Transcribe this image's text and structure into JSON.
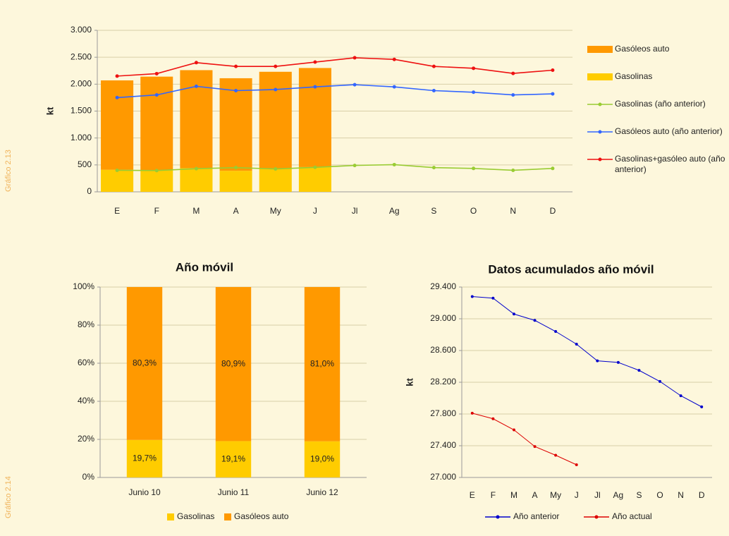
{
  "figure_labels": [
    "Gráfico 2.13",
    "Gráfico 2.14"
  ],
  "chart_data": [
    {
      "type": "bar",
      "ylabel": "kt",
      "legend": "right",
      "grid": true,
      "categories": [
        "E",
        "F",
        "M",
        "A",
        "My",
        "J",
        "Jl",
        "Ag",
        "S",
        "O",
        "N",
        "D"
      ],
      "ylim": [
        0,
        3000
      ],
      "yticks": [
        0,
        500,
        {
          "value": 1000,
          "label": "1.000"
        },
        {
          "value": 1500,
          "label": "1.500"
        },
        {
          "value": 2000,
          "label": "2.000"
        },
        {
          "value": 2500,
          "label": "2.500"
        },
        {
          "value": 3000,
          "label": "3.000"
        }
      ],
      "series": [
        {
          "name": "Gasolinas",
          "color": "#ffcc00",
          "values": [
            410,
            400,
            440,
            390,
            430,
            460,
            null,
            null,
            null,
            null,
            null,
            null
          ]
        },
        {
          "name": "Gasóleos auto",
          "color": "#ff9900",
          "values": [
            1660,
            1740,
            1820,
            1720,
            1800,
            1840,
            null,
            null,
            null,
            null,
            null,
            null
          ]
        },
        {
          "name": "Gasolinas (año anterior)",
          "type": "line",
          "color": "#99cc33",
          "values": [
            400,
            395,
            430,
            450,
            425,
            455,
            490,
            505,
            450,
            435,
            400,
            435
          ]
        },
        {
          "name": "Gasóleos auto (año anterior)",
          "type": "line",
          "color": "#3366ff",
          "values": [
            1750,
            1800,
            1960,
            1880,
            1900,
            1950,
            1990,
            1950,
            1880,
            1850,
            1800,
            1820
          ]
        },
        {
          "name": "Gasolinas+gasóleo auto (año anterior)",
          "type": "line",
          "color": "#ee1111",
          "values": [
            2150,
            2195,
            2400,
            2330,
            2330,
            2410,
            2490,
            2460,
            2330,
            2295,
            2200,
            2260
          ]
        }
      ]
    },
    {
      "type": "bar",
      "title": "Año móvil",
      "legend": "bottom",
      "grid": true,
      "categories": [
        "Junio 10",
        "Junio 11",
        "Junio 12"
      ],
      "ylim": [
        0,
        100
      ],
      "yticks": [
        {
          "value": 0,
          "label": "0%"
        },
        {
          "value": 20,
          "label": "20%"
        },
        {
          "value": 40,
          "label": "40%"
        },
        {
          "value": 60,
          "label": "60%"
        },
        {
          "value": 80,
          "label": "80%"
        },
        {
          "value": 100,
          "label": "100%"
        }
      ],
      "series": [
        {
          "name": "Gasolinas",
          "color": "#ffcc00",
          "values": [
            19.7,
            19.1,
            19.0
          ],
          "value_labels": [
            "19,7%",
            "19,1%",
            "19,0%"
          ]
        },
        {
          "name": "Gasóleos auto",
          "color": "#ff9900",
          "values": [
            80.3,
            80.9,
            81.0
          ],
          "value_labels": [
            "80,3%",
            "80,9%",
            "81,0%"
          ]
        }
      ]
    },
    {
      "type": "line",
      "title": "Datos acumulados año móvil",
      "ylabel": "kt",
      "legend": "bottom",
      "grid": true,
      "categories": [
        "E",
        "F",
        "M",
        "A",
        "My",
        "J",
        "Jl",
        "Ag",
        "S",
        "O",
        "N",
        "D"
      ],
      "ylim": [
        27000,
        29400
      ],
      "yticks": [
        {
          "value": 27000,
          "label": "27.000"
        },
        {
          "value": 27400,
          "label": "27.400"
        },
        {
          "value": 27800,
          "label": "27.800"
        },
        {
          "value": 28200,
          "label": "28.200"
        },
        {
          "value": 28600,
          "label": "28.600"
        },
        {
          "value": 29000,
          "label": "29.000"
        },
        {
          "value": 29400,
          "label": "29.400"
        }
      ],
      "series": [
        {
          "name": "Año anterior",
          "color": "#0000cc",
          "values": [
            29280,
            29260,
            29060,
            28980,
            28840,
            28680,
            28470,
            28450,
            28350,
            28210,
            28030,
            27890
          ]
        },
        {
          "name": "Año actual",
          "color": "#dd0000",
          "values": [
            27810,
            27740,
            27600,
            27390,
            27280,
            27160,
            null,
            null,
            null,
            null,
            null,
            null
          ]
        }
      ]
    }
  ]
}
